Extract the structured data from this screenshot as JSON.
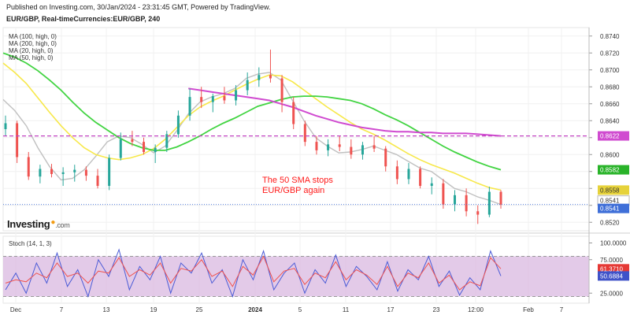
{
  "header": {
    "published_line": "Published on Investing.com, 30/Jan/2024 - 23:31:45 GMT, Powered by TradingView.",
    "symbol_line": "EUR/GBP, Real-timeCurrencies:EUR/GBP, 240"
  },
  "indicators": {
    "ma_labels": [
      "MA (100, high, 0)",
      "MA (200, high, 0)",
      "MA (20, high, 0)",
      "MA (50, high, 0)"
    ],
    "stoch_label": "Stoch (14, 1, 3)"
  },
  "annotation": {
    "line1": "The 50 SMA stops",
    "line2": "EUR/GBP again"
  },
  "logo": {
    "text": "Investing",
    "suffix": ".com"
  },
  "colors": {
    "candle_up": "#26a69a",
    "candle_down": "#ef5350",
    "ma20": "#c0c0c0",
    "ma50": "#f7e84a",
    "ma100": "#42d442",
    "ma200": "#d04bd0",
    "stoch_k": "#4b5bd6",
    "stoch_d": "#ef5350",
    "stoch_band": "#d9b8e0",
    "last_price_box": "#3f6fd8",
    "ma100_box": "#29b329",
    "ma50_box": "#e6d23a",
    "ma200_box": "#d04bd0",
    "stoch_k_box": "#3f52c9",
    "stoch_d_box": "#e53935",
    "annotation": "#ff1a1a"
  },
  "chart_data": [
    {
      "type": "candlestick",
      "ylim": [
        0.851,
        0.875
      ],
      "ytick_labels": [
        "0.8740",
        "0.8720",
        "0.8700",
        "0.8680",
        "0.8660",
        "0.8640",
        "0.8620",
        "0.8600",
        "0.8580",
        "0.8560",
        "0.8540",
        "0.8520"
      ],
      "ytick_values": [
        0.874,
        0.872,
        0.87,
        0.868,
        0.866,
        0.864,
        0.862,
        0.86,
        0.858,
        0.856,
        0.854,
        0.852
      ],
      "xtick_labels": [
        "Dec",
        "7",
        "13",
        "19",
        "25",
        "2024",
        "5",
        "11",
        "17",
        "23",
        "12:00",
        "Feb",
        "7"
      ],
      "price_labels": [
        {
          "label": "0.8622",
          "value": 0.8622,
          "kind": "ma200"
        },
        {
          "label": "0.8582",
          "value": 0.8582,
          "kind": "ma100"
        },
        {
          "label": "0.8558",
          "value": 0.8558,
          "kind": "ma50"
        },
        {
          "label": "0.8541",
          "value": 0.8541,
          "kind": "ma20"
        },
        {
          "label": "0.8541",
          "value": 0.8541,
          "kind": "last"
        }
      ],
      "horizontal_lines": [
        {
          "value": 0.8622,
          "style": "dashed",
          "color": "#c040c0"
        },
        {
          "value": 0.8541,
          "style": "dotted",
          "color": "#3f6fd8"
        }
      ],
      "series": [
        {
          "name": "MA (20, high, 0)",
          "values": [
            0.8665,
            0.8652,
            0.8634,
            0.8608,
            0.8586,
            0.857,
            0.8572,
            0.8582,
            0.8598,
            0.8615,
            0.8622,
            0.862,
            0.8612,
            0.8602,
            0.861,
            0.8628,
            0.8648,
            0.8662,
            0.8668,
            0.8672,
            0.8678,
            0.869,
            0.8695,
            0.8697,
            0.8688,
            0.8664,
            0.864,
            0.862,
            0.861,
            0.8602,
            0.8603,
            0.8606,
            0.861,
            0.8605,
            0.86,
            0.8592,
            0.8584,
            0.858,
            0.857,
            0.856,
            0.8556,
            0.855,
            0.8546,
            0.8541
          ]
        },
        {
          "name": "MA (50, high, 0)",
          "values": [
            0.8708,
            0.8697,
            0.8684,
            0.8667,
            0.865,
            0.8634,
            0.862,
            0.8608,
            0.86,
            0.8596,
            0.8594,
            0.8596,
            0.86,
            0.8607,
            0.8618,
            0.8632,
            0.8646,
            0.8656,
            0.8663,
            0.8669,
            0.8676,
            0.8683,
            0.8689,
            0.8694,
            0.8693,
            0.8686,
            0.8676,
            0.8666,
            0.8656,
            0.8647,
            0.8638,
            0.863,
            0.8624,
            0.8617,
            0.8609,
            0.8601,
            0.8594,
            0.8588,
            0.8583,
            0.8578,
            0.8572,
            0.8566,
            0.8561,
            0.8558
          ]
        },
        {
          "name": "MA (100, high, 0)",
          "values": [
            0.872,
            0.8715,
            0.8708,
            0.8699,
            0.8688,
            0.8676,
            0.8662,
            0.8649,
            0.8638,
            0.8629,
            0.862,
            0.8613,
            0.8608,
            0.8605,
            0.8605,
            0.8609,
            0.8615,
            0.8622,
            0.863,
            0.8637,
            0.8643,
            0.865,
            0.8657,
            0.8661,
            0.8665,
            0.8668,
            0.8669,
            0.8669,
            0.8668,
            0.8666,
            0.8664,
            0.866,
            0.8654,
            0.8647,
            0.8641,
            0.8634,
            0.8626,
            0.8618,
            0.861,
            0.8603,
            0.8597,
            0.8591,
            0.8586,
            0.8582
          ]
        },
        {
          "name": "MA (200, high, 0)",
          "values": [
            null,
            null,
            null,
            null,
            null,
            null,
            null,
            null,
            null,
            null,
            null,
            null,
            null,
            null,
            null,
            null,
            0.8678,
            0.8676,
            0.8674,
            0.8672,
            0.867,
            0.8668,
            0.8666,
            0.8664,
            0.866,
            0.8656,
            0.8651,
            0.8646,
            0.8642,
            0.8638,
            0.8635,
            0.8632,
            0.863,
            0.8628,
            0.8627,
            0.8627,
            0.8626,
            0.8626,
            0.8625,
            0.8625,
            0.8625,
            0.8624,
            0.8623,
            0.8622
          ]
        }
      ],
      "candles": [
        {
          "o": 0.863,
          "h": 0.8646,
          "l": 0.8622,
          "c": 0.8637
        },
        {
          "o": 0.8637,
          "h": 0.864,
          "l": 0.859,
          "c": 0.8597
        },
        {
          "o": 0.8597,
          "h": 0.8603,
          "l": 0.857,
          "c": 0.8574
        },
        {
          "o": 0.8574,
          "h": 0.8588,
          "l": 0.8566,
          "c": 0.8583
        },
        {
          "o": 0.8583,
          "h": 0.8589,
          "l": 0.8573,
          "c": 0.8577
        },
        {
          "o": 0.8577,
          "h": 0.8585,
          "l": 0.8563,
          "c": 0.8579
        },
        {
          "o": 0.8579,
          "h": 0.8588,
          "l": 0.8568,
          "c": 0.8582
        },
        {
          "o": 0.8582,
          "h": 0.8586,
          "l": 0.8569,
          "c": 0.8575
        },
        {
          "o": 0.8575,
          "h": 0.8583,
          "l": 0.856,
          "c": 0.8563
        },
        {
          "o": 0.8563,
          "h": 0.86,
          "l": 0.8558,
          "c": 0.8596
        },
        {
          "o": 0.8596,
          "h": 0.8626,
          "l": 0.8593,
          "c": 0.8618
        },
        {
          "o": 0.8618,
          "h": 0.8628,
          "l": 0.861,
          "c": 0.8615
        },
        {
          "o": 0.8615,
          "h": 0.862,
          "l": 0.86,
          "c": 0.8603
        },
        {
          "o": 0.8603,
          "h": 0.8612,
          "l": 0.859,
          "c": 0.8608
        },
        {
          "o": 0.8608,
          "h": 0.8628,
          "l": 0.8603,
          "c": 0.8624
        },
        {
          "o": 0.8624,
          "h": 0.8652,
          "l": 0.862,
          "c": 0.8646
        },
        {
          "o": 0.8646,
          "h": 0.8678,
          "l": 0.864,
          "c": 0.8668
        },
        {
          "o": 0.8668,
          "h": 0.868,
          "l": 0.8655,
          "c": 0.8662
        },
        {
          "o": 0.8662,
          "h": 0.8672,
          "l": 0.865,
          "c": 0.8669
        },
        {
          "o": 0.8669,
          "h": 0.868,
          "l": 0.866,
          "c": 0.8664
        },
        {
          "o": 0.8664,
          "h": 0.8682,
          "l": 0.8658,
          "c": 0.8676
        },
        {
          "o": 0.8676,
          "h": 0.8697,
          "l": 0.867,
          "c": 0.8688
        },
        {
          "o": 0.8688,
          "h": 0.8703,
          "l": 0.868,
          "c": 0.8694
        },
        {
          "o": 0.8694,
          "h": 0.8724,
          "l": 0.8685,
          "c": 0.869
        },
        {
          "o": 0.869,
          "h": 0.8694,
          "l": 0.865,
          "c": 0.8662
        },
        {
          "o": 0.8662,
          "h": 0.8668,
          "l": 0.863,
          "c": 0.8636
        },
        {
          "o": 0.8636,
          "h": 0.864,
          "l": 0.861,
          "c": 0.8615
        },
        {
          "o": 0.8615,
          "h": 0.8622,
          "l": 0.86,
          "c": 0.8605
        },
        {
          "o": 0.8605,
          "h": 0.8618,
          "l": 0.8598,
          "c": 0.8612
        },
        {
          "o": 0.8612,
          "h": 0.8622,
          "l": 0.8604,
          "c": 0.8609
        },
        {
          "o": 0.8609,
          "h": 0.8618,
          "l": 0.8595,
          "c": 0.86
        },
        {
          "o": 0.86,
          "h": 0.8615,
          "l": 0.8594,
          "c": 0.8611
        },
        {
          "o": 0.8611,
          "h": 0.8622,
          "l": 0.8603,
          "c": 0.8607
        },
        {
          "o": 0.8607,
          "h": 0.861,
          "l": 0.858,
          "c": 0.8586
        },
        {
          "o": 0.8586,
          "h": 0.8593,
          "l": 0.8565,
          "c": 0.8571
        },
        {
          "o": 0.8571,
          "h": 0.859,
          "l": 0.8565,
          "c": 0.8583
        },
        {
          "o": 0.8583,
          "h": 0.8586,
          "l": 0.856,
          "c": 0.8563
        },
        {
          "o": 0.8563,
          "h": 0.8573,
          "l": 0.8553,
          "c": 0.8566
        },
        {
          "o": 0.8566,
          "h": 0.8571,
          "l": 0.8536,
          "c": 0.8541
        },
        {
          "o": 0.8541,
          "h": 0.8558,
          "l": 0.8533,
          "c": 0.8552
        },
        {
          "o": 0.8552,
          "h": 0.856,
          "l": 0.8527,
          "c": 0.8533
        },
        {
          "o": 0.8533,
          "h": 0.854,
          "l": 0.8518,
          "c": 0.8529
        },
        {
          "o": 0.8529,
          "h": 0.8562,
          "l": 0.8526,
          "c": 0.8556
        },
        {
          "o": 0.8556,
          "h": 0.8558,
          "l": 0.8536,
          "c": 0.8541
        }
      ]
    },
    {
      "type": "line",
      "title": "Stoch (14, 1, 3)",
      "ylim": [
        10,
        110
      ],
      "ytick_labels": [
        "100.0000",
        "75.0000",
        "25.0000"
      ],
      "ytick_values": [
        100,
        75,
        25
      ],
      "band": [
        20,
        80
      ],
      "value_labels": [
        {
          "label": "61.3710",
          "value": 61.371,
          "kind": "d"
        },
        {
          "label": "50.6884",
          "value": 50.6884,
          "kind": "k"
        }
      ],
      "series": [
        {
          "name": "%K",
          "values": [
            30,
            55,
            25,
            70,
            40,
            85,
            35,
            60,
            20,
            75,
            50,
            90,
            30,
            65,
            45,
            80,
            25,
            70,
            55,
            85,
            40,
            60,
            20,
            75,
            45,
            88,
            30,
            55,
            70,
            25,
            60,
            40,
            82,
            35,
            65,
            50,
            30,
            72,
            28,
            60,
            45,
            80,
            35,
            58,
            22,
            48,
            30,
            88,
            50.69
          ]
        },
        {
          "name": "%D",
          "values": [
            40,
            45,
            42,
            55,
            48,
            70,
            50,
            55,
            40,
            58,
            55,
            78,
            50,
            60,
            52,
            70,
            40,
            62,
            58,
            75,
            50,
            58,
            35,
            65,
            52,
            80,
            42,
            58,
            62,
            38,
            55,
            48,
            72,
            45,
            60,
            52,
            38,
            65,
            35,
            55,
            48,
            70,
            40,
            52,
            30,
            42,
            36,
            78,
            61.37
          ]
        }
      ]
    }
  ]
}
